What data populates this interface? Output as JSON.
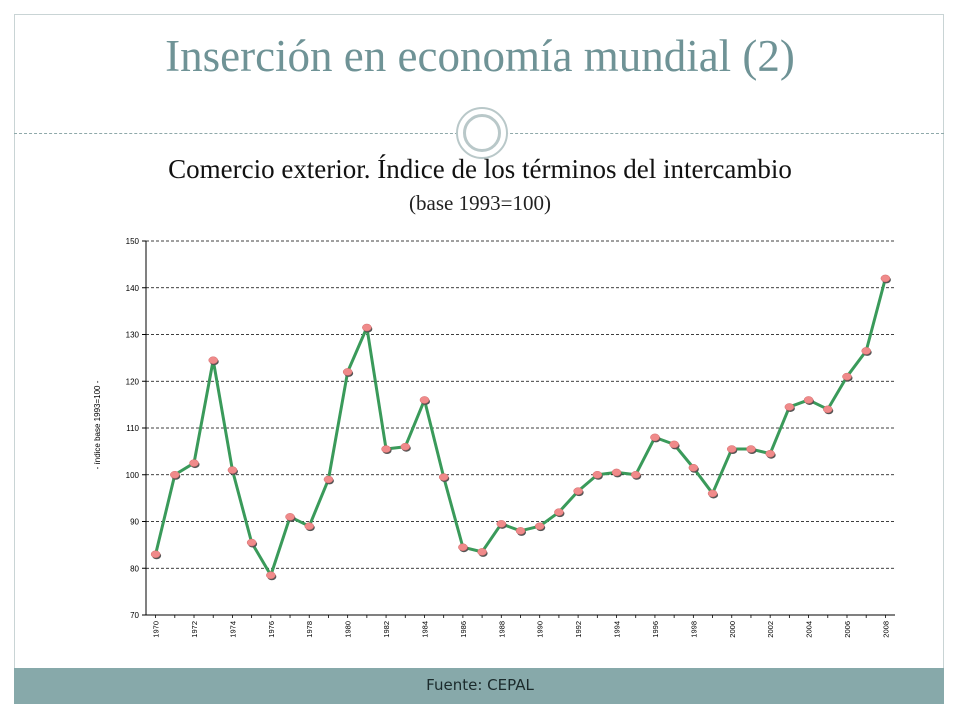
{
  "slide": {
    "title": "Inserción en economía mundial (2)",
    "source": "Fuente: CEPAL",
    "colors": {
      "title": "#6f9396",
      "accent_bar": "#87a9aa",
      "line": "#3a9a5a",
      "marker": "#f08a8a"
    }
  },
  "chart_data": {
    "type": "line",
    "title": "Comercio exterior. Índice de los términos del intercambio",
    "subtitle": "(base 1993=100)",
    "ylabel": "- índice base 1993=100 -",
    "xlabel": "",
    "ylim": [
      70,
      150
    ],
    "yticks": [
      70,
      80,
      90,
      100,
      110,
      120,
      130,
      140,
      150
    ],
    "grid": "horizontal dashed",
    "legend": "none",
    "xtick_labels": [
      "1970",
      "1972",
      "1974",
      "1976",
      "1978",
      "1980",
      "1982",
      "1984",
      "1986",
      "1988",
      "1990",
      "1992",
      "1994",
      "1996",
      "1998",
      "2000",
      "2002",
      "2004",
      "2006",
      "2008"
    ],
    "x": [
      1970,
      1971,
      1972,
      1973,
      1974,
      1975,
      1976,
      1977,
      1978,
      1979,
      1980,
      1981,
      1982,
      1983,
      1984,
      1985,
      1986,
      1987,
      1988,
      1989,
      1990,
      1991,
      1992,
      1993,
      1994,
      1995,
      1996,
      1997,
      1998,
      1999,
      2000,
      2001,
      2002,
      2003,
      2004,
      2005,
      2006,
      2007,
      2008
    ],
    "series": [
      {
        "values": [
          83,
          100,
          102.5,
          124.5,
          101,
          85.5,
          78.5,
          91,
          89,
          99,
          122,
          131.5,
          105.5,
          106,
          116,
          99.5,
          84.5,
          83.5,
          89.5,
          88,
          89,
          92,
          96.5,
          100,
          100.5,
          100,
          108,
          106.5,
          101.5,
          96,
          105.5,
          105.5,
          104.5,
          114.5,
          116,
          114,
          121,
          126.5,
          142
        ]
      }
    ]
  }
}
